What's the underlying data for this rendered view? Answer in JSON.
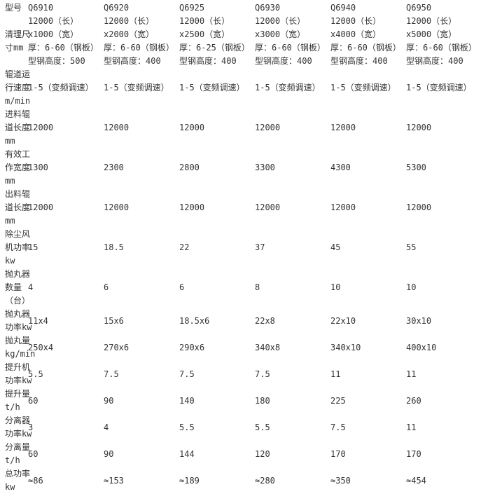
{
  "page": {
    "background": "#ffffff",
    "text_color": "#333333"
  },
  "table": {
    "header": {
      "label": "型号",
      "models": [
        "Q6910",
        "Q6920",
        "Q6925",
        "Q6930",
        "Q6940",
        "Q6950"
      ]
    },
    "rows": [
      {
        "label": "清理尺\n寸mm",
        "values": [
          "12000（长）x1000（宽）\n厚：6-60（钢板）\n型钢高度：500",
          "12000（长）x2000（宽）\n厚：6-60（钢板）\n型钢高度：400",
          "12000（长）x2500（宽）\n厚：6-25（钢板）\n型钢高度：400",
          "12000（长）x3000（宽）\n厚：6-60（钢板）\n型钢高度：400",
          "12000（长）x4000（宽）\n厚：6-60（钢板）\n型钢高度：400",
          "12000（长）x5000（宽）\n厚：6-60（钢板）\n型钢高度：400"
        ]
      },
      {
        "label": "辊道运\n行速度\nm/min",
        "values": [
          "1-5（变频调速）",
          "1-5（变频调速）",
          "1-5（变频调速）",
          "1-5（变频调速）",
          "1-5（变频调速）",
          "1-5（变频调速）"
        ]
      },
      {
        "label": "进料辊\n道长度\nmm",
        "values": [
          "12000",
          "12000",
          "12000",
          "12000",
          "12000",
          "12000"
        ]
      },
      {
        "label": "有效工\n作宽度\nmm",
        "values": [
          "1300",
          "2300",
          "2800",
          "3300",
          "4300",
          "5300"
        ]
      },
      {
        "label": "出料辊\n道长度\nmm",
        "values": [
          "12000",
          "12000",
          "12000",
          "12000",
          "12000",
          "12000"
        ]
      },
      {
        "label": "除尘风\n机功率\nkw",
        "values": [
          "15",
          "18.5",
          "22",
          "37",
          "45",
          "55"
        ]
      },
      {
        "label": "抛丸器\n数量\n（台）",
        "values": [
          "4",
          "6",
          "6",
          "8",
          "10",
          "10"
        ]
      },
      {
        "label": "抛丸器\n功率kw",
        "values": [
          "11x4",
          "15x6",
          "18.5x6",
          "22x8",
          "22x10",
          "30x10"
        ]
      },
      {
        "label": "抛丸量\nkg/min",
        "values": [
          "250x4",
          "270x6",
          "290x6",
          "340x8",
          "340x10",
          "400x10"
        ]
      },
      {
        "label": "提升机\n功率kw",
        "values": [
          "5.5",
          "7.5",
          "7.5",
          "7.5",
          "11",
          "11"
        ]
      },
      {
        "label": "提升量\nt/h",
        "values": [
          "60",
          "90",
          "140",
          "180",
          "225",
          "260"
        ]
      },
      {
        "label": "分离器\n功率kw",
        "values": [
          "3",
          "4",
          "5.5",
          "5.5",
          "7.5",
          "11"
        ]
      },
      {
        "label": "分离量\nt/h",
        "values": [
          "60",
          "90",
          "144",
          "120",
          "170",
          "170"
        ]
      },
      {
        "label": "总功率\nkw",
        "values": [
          "≈86",
          "≈153",
          "≈189",
          "≈280",
          "≈350",
          "≈454"
        ]
      }
    ]
  }
}
